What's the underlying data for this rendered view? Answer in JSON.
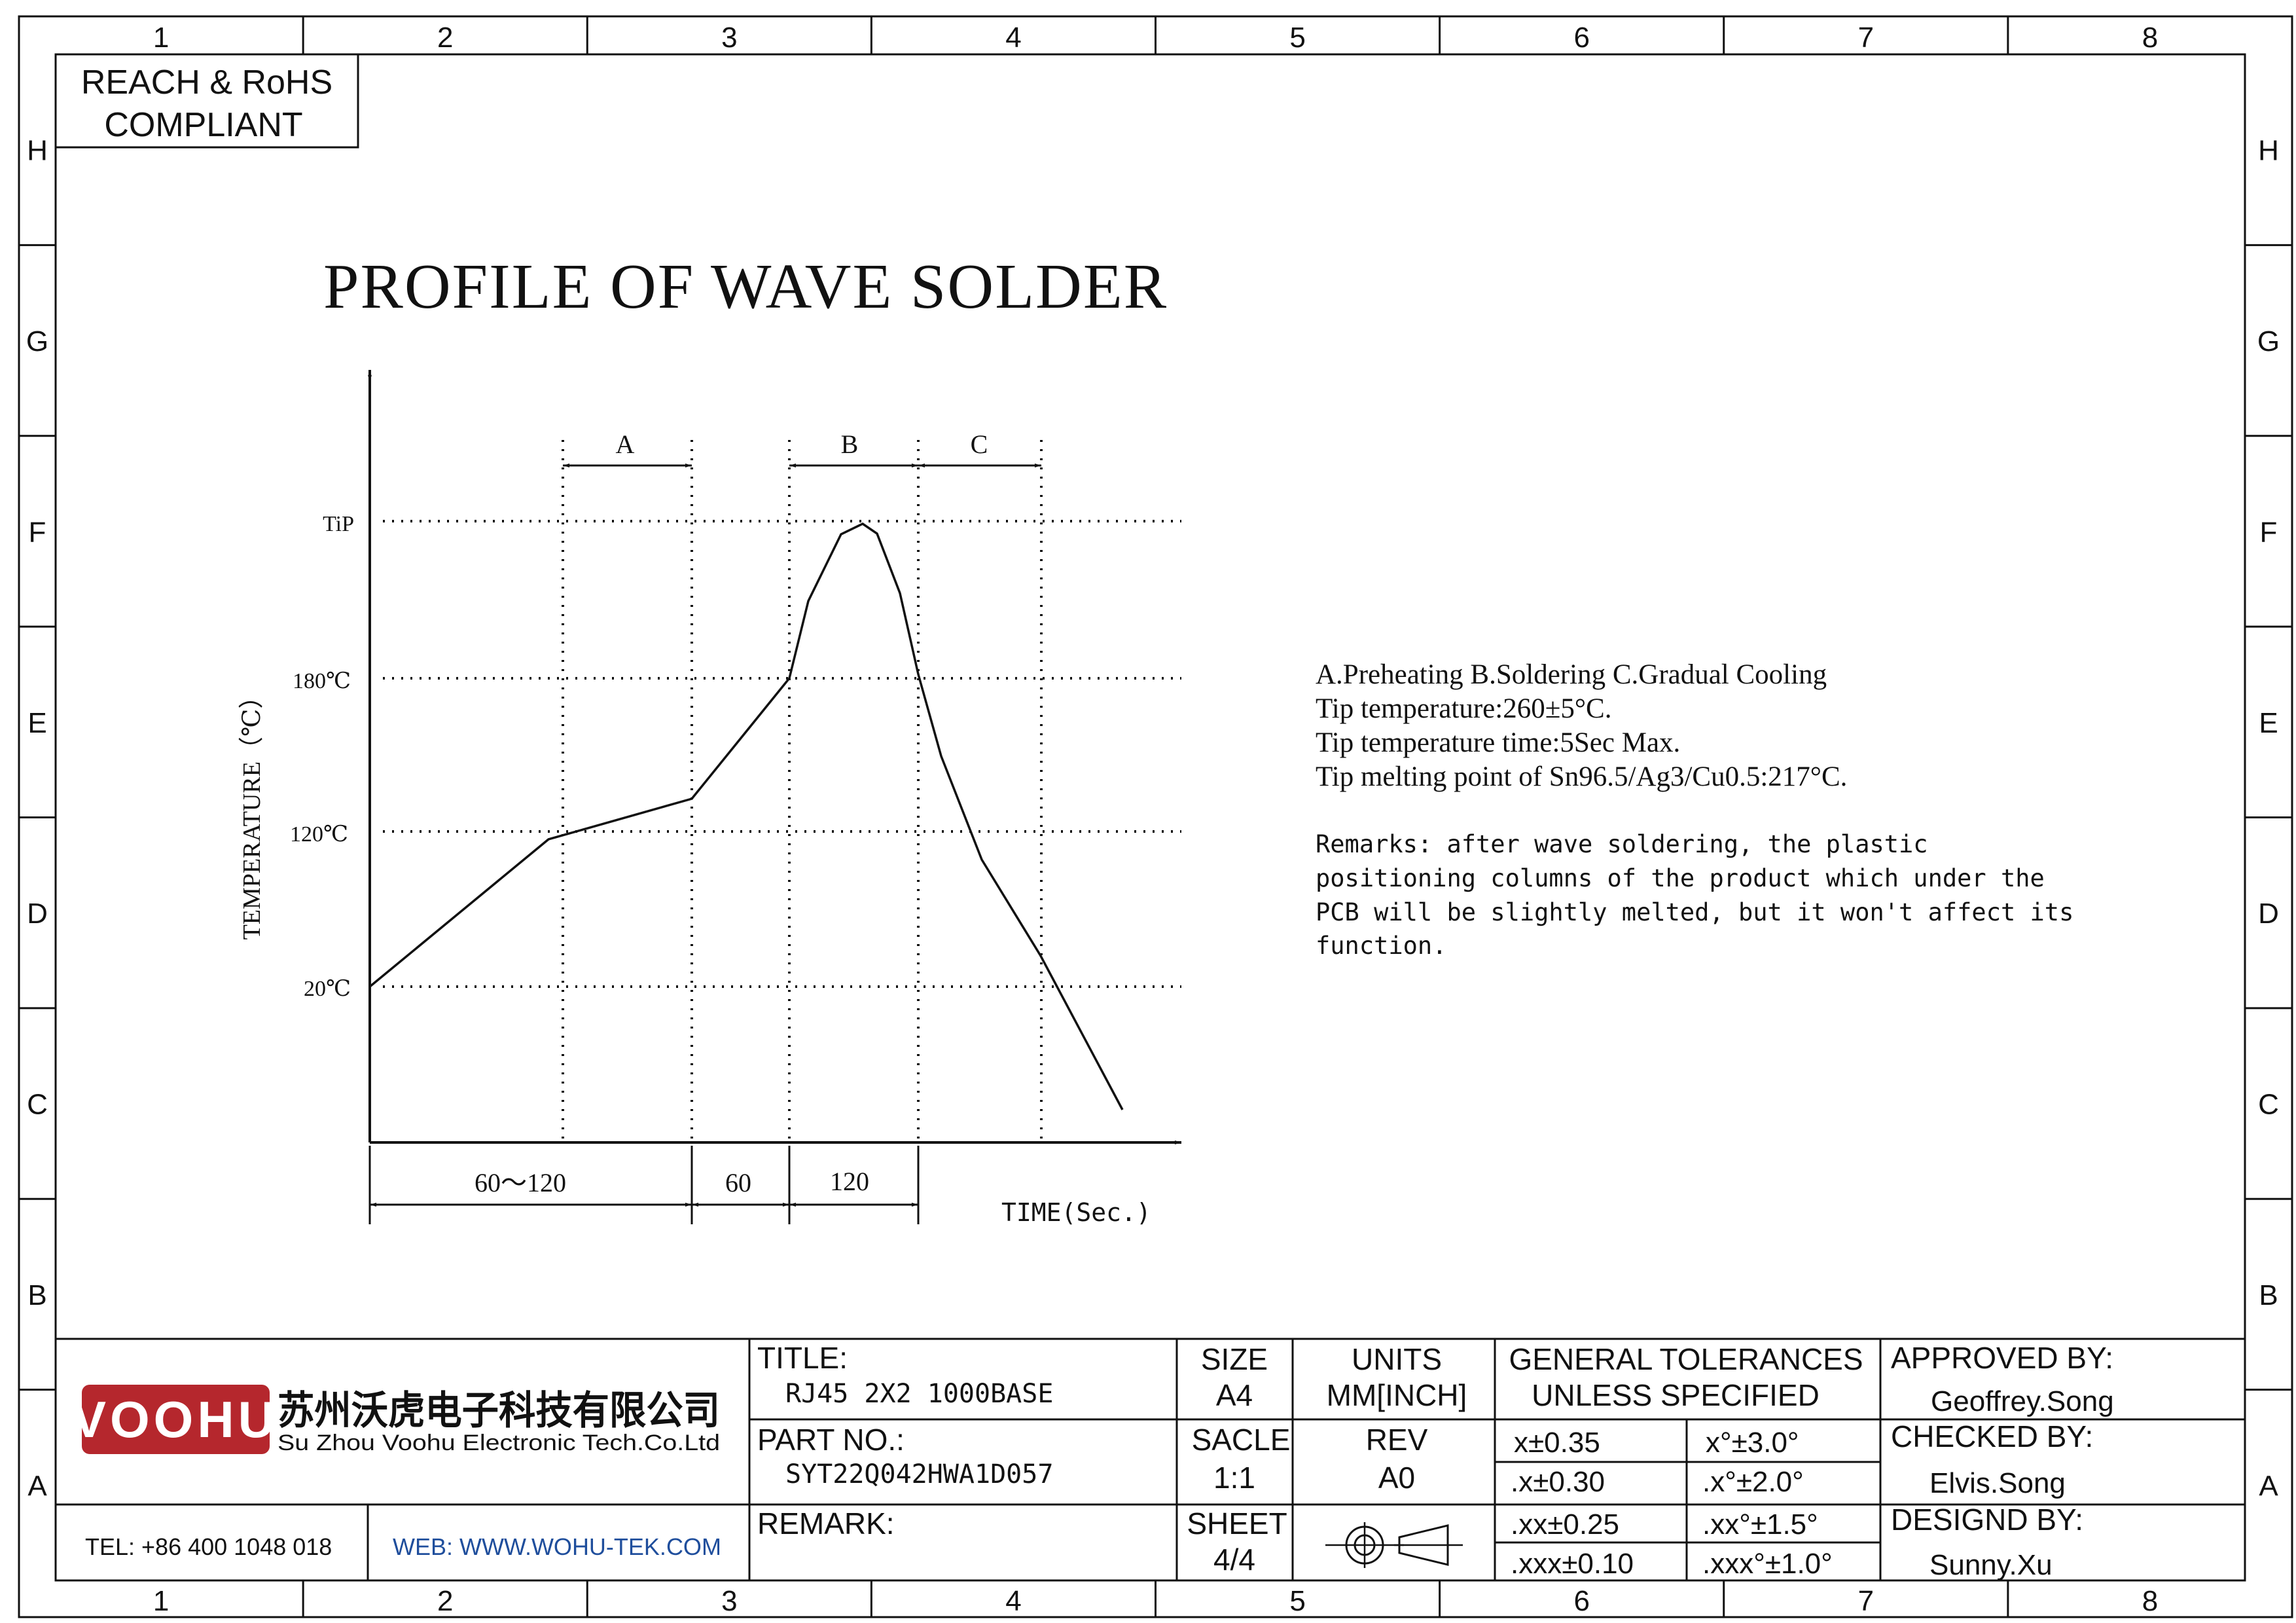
{
  "frame": {
    "col_labels": [
      "1",
      "2",
      "3",
      "4",
      "5",
      "6",
      "7",
      "8"
    ],
    "row_labels": [
      "H",
      "G",
      "F",
      "E",
      "D",
      "C",
      "B",
      "A"
    ]
  },
  "compliance": {
    "line1": "REACH & RoHS",
    "line2": "COMPLIANT"
  },
  "drawing_title": "PROFILE OF WAVE SOLDER",
  "chart_data": {
    "type": "line",
    "ylabel": "TEMPERATURE（℃）",
    "xlabel": "TIME(Sec.)",
    "y_tick_labels": [
      "TiP",
      "180℃",
      "120℃",
      "20℃"
    ],
    "zone_labels": [
      "A",
      "B",
      "C"
    ],
    "duration_labels": [
      "60～120",
      "60",
      "120"
    ],
    "series": [
      {
        "values": []
      }
    ]
  },
  "notes": {
    "line1": "A.Preheating  B.Soldering  C.Gradual Cooling",
    "line2": "Tip temperature:260±5°C.",
    "line3": "Tip temperature time:5Sec Max.",
    "line4": "Tip melting point of Sn96.5/Ag3/Cu0.5:217°C."
  },
  "remarks": {
    "line1": "Remarks: after wave soldering, the plastic",
    "line2": "positioning columns of the product  which under the",
    "line3": "PCB will be slightly melted, but it won't affect its",
    "line4": "function."
  },
  "company": {
    "logo_text": "VOOHU",
    "name_cn": "苏州沃虎电子科技有限公司",
    "name_en": "Su Zhou Voohu Electronic Tech.Co.Ltd",
    "tel": "TEL: +86 400 1048 018",
    "web": "WEB: WWW.WOHU-TEK.COM",
    "brand_color": "#b5272d",
    "web_color": "#1f4e9c"
  },
  "title_block": {
    "title_label": "TITLE:",
    "title_value": "RJ45 2X2 1000BASE",
    "part_label": "PART NO.:",
    "part_value": "SYT22Q042HWA1D057",
    "remark_label": "REMARK:",
    "size_label": "SIZE",
    "size_value": "A4",
    "scale_label": "SACLE",
    "scale_value": "1:1",
    "sheet_label": "SHEET",
    "sheet_value": "4/4",
    "units_label": "UNITS",
    "units_value": "MM[INCH]",
    "rev_label": "REV",
    "rev_value": "A0",
    "tol_header1": "GENERAL TOLERANCES",
    "tol_header2": "UNLESS SPECIFIED",
    "tol_linear": [
      "x±0.35",
      ".x±0.30",
      ".xx±0.25",
      ".xxx±0.10"
    ],
    "tol_angular": [
      "x°±3.0°",
      ".x°±2.0°",
      ".xx°±1.5°",
      ".xxx°±1.0°"
    ],
    "approved_label": "APPROVED BY:",
    "approved_value": "Geoffrey.Song",
    "checked_label": "CHECKED BY:",
    "checked_value": "Elvis.Song",
    "designed_label": "DESIGND BY:",
    "designed_value": "Sunny.Xu"
  }
}
